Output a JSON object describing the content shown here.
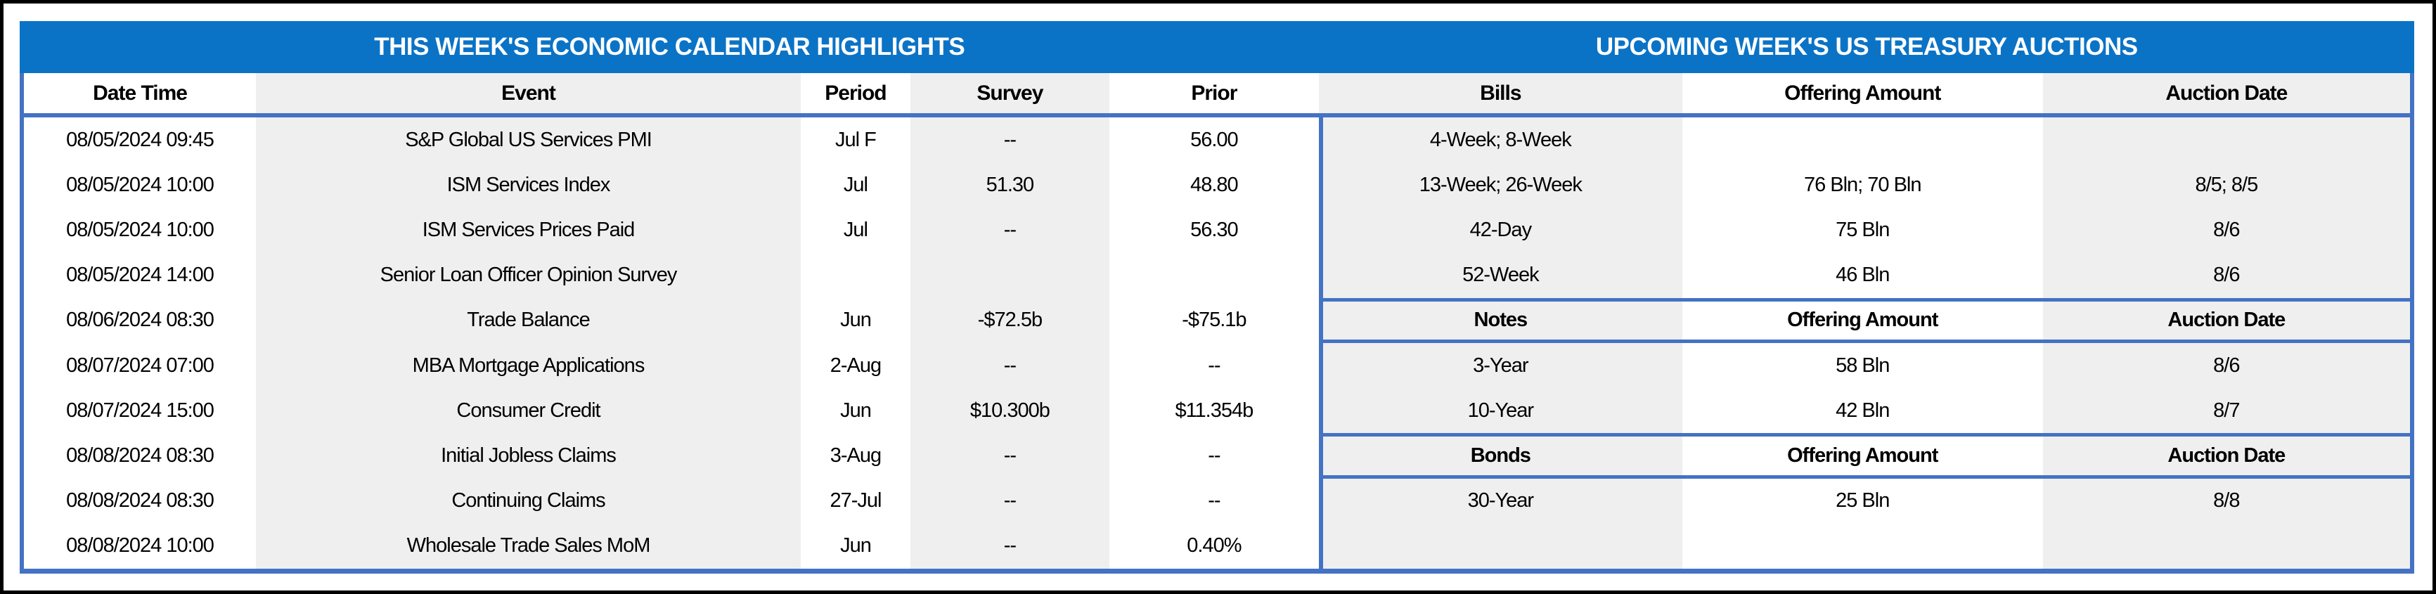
{
  "colors": {
    "title_bar_blue": "#0B73C6",
    "border_blue": "#4472C4",
    "stripe_grey": "#EFEFEF",
    "frame_black": "#000000",
    "text": "#000000",
    "title_text": "#ffffff"
  },
  "titles": {
    "left": "THIS WEEK'S ECONOMIC CALENDAR HIGHLIGHTS",
    "right": "UPCOMING WEEK'S US TREASURY AUCTIONS"
  },
  "calendar": {
    "header": {
      "datetime": "Date Time",
      "event": "Event",
      "period": "Period",
      "survey": "Survey",
      "prior": "Prior"
    },
    "rows": [
      {
        "datetime": "08/05/2024 09:45",
        "event": "S&P Global US Services PMI",
        "period": "Jul F",
        "survey": "--",
        "prior": "56.00"
      },
      {
        "datetime": "08/05/2024 10:00",
        "event": "ISM Services Index",
        "period": "Jul",
        "survey": "51.30",
        "prior": "48.80"
      },
      {
        "datetime": "08/05/2024 10:00",
        "event": "ISM Services Prices Paid",
        "period": "Jul",
        "survey": "--",
        "prior": "56.30"
      },
      {
        "datetime": "08/05/2024 14:00",
        "event": "Senior Loan Officer Opinion Survey",
        "period": "",
        "survey": "",
        "prior": ""
      },
      {
        "datetime": "08/06/2024 08:30",
        "event": "Trade Balance",
        "period": "Jun",
        "survey": "-$72.5b",
        "prior": "-$75.1b"
      },
      {
        "datetime": "08/07/2024 07:00",
        "event": "MBA Mortgage Applications",
        "period": "2-Aug",
        "survey": "--",
        "prior": "--"
      },
      {
        "datetime": "08/07/2024 15:00",
        "event": "Consumer Credit",
        "period": "Jun",
        "survey": "$10.300b",
        "prior": "$11.354b"
      },
      {
        "datetime": "08/08/2024 08:30",
        "event": "Initial Jobless Claims",
        "period": "3-Aug",
        "survey": "--",
        "prior": "--"
      },
      {
        "datetime": "08/08/2024 08:30",
        "event": "Continuing Claims",
        "period": "27-Jul",
        "survey": "--",
        "prior": "--"
      },
      {
        "datetime": "08/08/2024 10:00",
        "event": "Wholesale Trade Sales MoM",
        "period": "Jun",
        "survey": "--",
        "prior": "0.40%"
      }
    ]
  },
  "auctions": {
    "header": {
      "security": "Bills",
      "offering": "Offering Amount",
      "date": "Auction Date"
    },
    "rows": [
      {
        "type": "data",
        "security": "4-Week; 8-Week",
        "offering": "",
        "date": ""
      },
      {
        "type": "data",
        "security": "13-Week; 26-Week",
        "offering": "76 Bln; 70 Bln",
        "date": "8/5; 8/5"
      },
      {
        "type": "data",
        "security": "42-Day",
        "offering": "75 Bln",
        "date": "8/6"
      },
      {
        "type": "data",
        "security": "52-Week",
        "offering": "46 Bln",
        "date": "8/6"
      },
      {
        "type": "subheader",
        "security": "Notes",
        "offering": "Offering Amount",
        "date": "Auction Date"
      },
      {
        "type": "data",
        "security": "3-Year",
        "offering": "58 Bln",
        "date": "8/6"
      },
      {
        "type": "data",
        "security": "10-Year",
        "offering": "42 Bln",
        "date": "8/7"
      },
      {
        "type": "subheader",
        "security": "Bonds",
        "offering": "Offering Amount",
        "date": "Auction Date"
      },
      {
        "type": "data",
        "security": "30-Year",
        "offering": "25 Bln",
        "date": "8/8"
      },
      {
        "type": "data",
        "security": "",
        "offering": "",
        "date": ""
      }
    ]
  }
}
